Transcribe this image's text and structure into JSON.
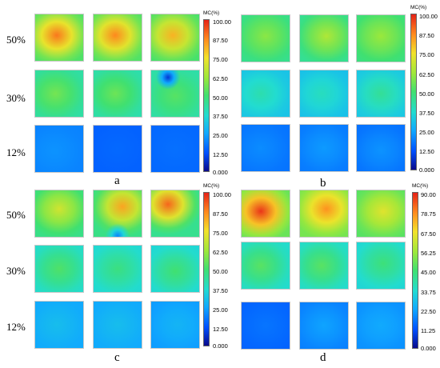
{
  "panels": [
    {
      "id": "a",
      "label": "a",
      "row_labels": [
        "50%",
        "30%",
        "12%"
      ],
      "colorbar": {
        "title": "MC(%)",
        "ticks": [
          "100.00",
          "87.50",
          "75.00",
          "62.50",
          "50.00",
          "37.50",
          "25.00",
          "12.50",
          "0.000"
        ]
      }
    },
    {
      "id": "b",
      "label": "b",
      "row_labels": [],
      "colorbar": {
        "title": "MC(%)",
        "ticks": [
          "100.00",
          "87.50",
          "75.00",
          "62.50",
          "50.00",
          "37.50",
          "25.00",
          "12.50",
          "0.000"
        ]
      }
    },
    {
      "id": "c",
      "label": "c",
      "row_labels": [
        "50%",
        "30%",
        "12%"
      ],
      "colorbar": {
        "title": "MC(%)",
        "ticks": [
          "100.00",
          "87.50",
          "75.00",
          "62.50",
          "50.00",
          "37.50",
          "25.00",
          "12.50",
          "0.000"
        ]
      }
    },
    {
      "id": "d",
      "label": "d",
      "row_labels": [],
      "colorbar": {
        "title": "MC(%)",
        "ticks": [
          "90.00",
          "78.75",
          "67.50",
          "56.25",
          "45.00",
          "33.75",
          "22.50",
          "11.25",
          "0.000"
        ]
      }
    }
  ],
  "chart_data": {
    "type": "heatmap",
    "panels": [
      "a",
      "b",
      "c",
      "d"
    ],
    "rows": [
      "50%",
      "30%",
      "12%"
    ],
    "samples_per_row": 3,
    "colorbar_ranges": {
      "a": [
        0,
        100
      ],
      "b": [
        0,
        100
      ],
      "c": [
        0,
        100
      ],
      "d": [
        0,
        90
      ]
    },
    "colorscale": [
      "#0a0a8c",
      "#0050ff",
      "#10a8ff",
      "#22dcd0",
      "#40e070",
      "#9ee83a",
      "#f2e22a",
      "#ff8c1e",
      "#e62218"
    ],
    "tiles": {
      "a": [
        [
          {
            "base": 57,
            "peak": 90,
            "cx": 0.45,
            "cy": 0.45
          },
          {
            "base": 57,
            "peak": 88,
            "cx": 0.45,
            "cy": 0.45
          },
          {
            "base": 55,
            "peak": 82,
            "cx": 0.45,
            "cy": 0.45
          }
        ],
        [
          {
            "base": 45,
            "peak": 57,
            "cx": 0.42,
            "cy": 0.5
          },
          {
            "base": 44,
            "peak": 56,
            "cx": 0.45,
            "cy": 0.5
          },
          {
            "base": 44,
            "peak": 53,
            "cx": 0.5,
            "cy": 0.55,
            "low": 8,
            "lx": 0.35,
            "ly": 0.15
          }
        ],
        [
          {
            "base": 20,
            "peak": 22,
            "cx": 0.4,
            "cy": 0.55
          },
          {
            "base": 15,
            "peak": 16,
            "cx": 0.5,
            "cy": 0.5
          },
          {
            "base": 16,
            "peak": 17,
            "cx": 0.5,
            "cy": 0.5
          }
        ]
      ],
      "b": [
        [
          {
            "base": 48,
            "peak": 60,
            "cx": 0.5,
            "cy": 0.45
          },
          {
            "base": 48,
            "peak": 65,
            "cx": 0.55,
            "cy": 0.45
          },
          {
            "base": 50,
            "peak": 62,
            "cx": 0.5,
            "cy": 0.45
          }
        ],
        [
          {
            "base": 33,
            "peak": 42,
            "cx": 0.4,
            "cy": 0.5
          },
          {
            "base": 32,
            "peak": 40,
            "cx": 0.45,
            "cy": 0.5
          },
          {
            "base": 34,
            "peak": 45,
            "cx": 0.5,
            "cy": 0.5
          }
        ],
        [
          {
            "base": 18,
            "peak": 21,
            "cx": 0.4,
            "cy": 0.5
          },
          {
            "base": 19,
            "peak": 23,
            "cx": 0.5,
            "cy": 0.5
          },
          {
            "base": 18,
            "peak": 22,
            "cx": 0.5,
            "cy": 0.55
          }
        ]
      ],
      "c": [
        [
          {
            "base": 50,
            "peak": 70,
            "cx": 0.5,
            "cy": 0.4
          },
          {
            "base": 52,
            "peak": 84,
            "cx": 0.6,
            "cy": 0.35,
            "low": 20,
            "lx": 0.5,
            "ly": 0.98
          },
          {
            "base": 52,
            "peak": 92,
            "cx": 0.35,
            "cy": 0.3
          }
        ],
        [
          {
            "base": 40,
            "peak": 52,
            "cx": 0.5,
            "cy": 0.5
          },
          {
            "base": 38,
            "peak": 48,
            "cx": 0.5,
            "cy": 0.5
          },
          {
            "base": 38,
            "peak": 50,
            "cx": 0.5,
            "cy": 0.55
          }
        ],
        [
          {
            "base": 26,
            "peak": 30,
            "cx": 0.45,
            "cy": 0.5
          },
          {
            "base": 26,
            "peak": 30,
            "cx": 0.5,
            "cy": 0.5
          },
          {
            "base": 24,
            "peak": 28,
            "cx": 0.55,
            "cy": 0.5
          }
        ]
      ],
      "d": [
        [
          {
            "base": 55,
            "peak": 88,
            "cx": 0.4,
            "cy": 0.45
          },
          {
            "base": 55,
            "peak": 78,
            "cx": 0.55,
            "cy": 0.4
          },
          {
            "base": 50,
            "peak": 65,
            "cx": 0.55,
            "cy": 0.45
          }
        ],
        [
          {
            "base": 36,
            "peak": 48,
            "cx": 0.4,
            "cy": 0.5
          },
          {
            "base": 36,
            "peak": 48,
            "cx": 0.45,
            "cy": 0.5
          },
          {
            "base": 34,
            "peak": 44,
            "cx": 0.55,
            "cy": 0.45
          }
        ],
        [
          {
            "base": 14,
            "peak": 16,
            "cx": 0.5,
            "cy": 0.5
          },
          {
            "base": 18,
            "peak": 22,
            "cx": 0.5,
            "cy": 0.5
          },
          {
            "base": 20,
            "peak": 23,
            "cx": 0.5,
            "cy": 0.5
          }
        ]
      ]
    }
  }
}
